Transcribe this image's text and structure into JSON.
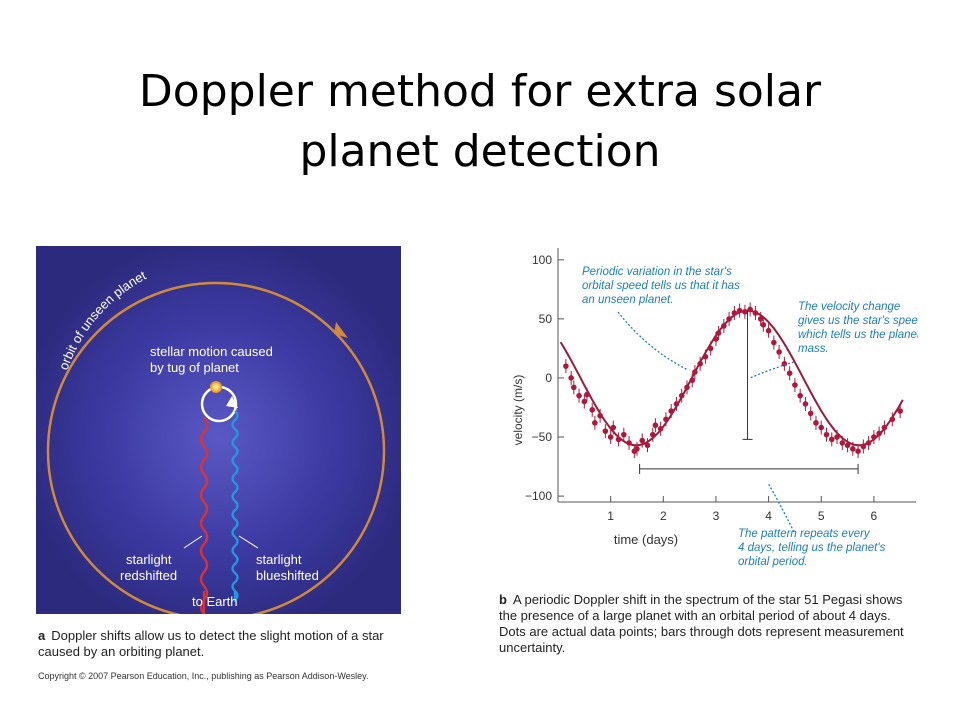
{
  "title_line1": "Doppler method for extra solar",
  "title_line2": "planet detection",
  "panel_a": {
    "orbit_label": "orbit of unseen planet",
    "motion_label_1": "stellar motion caused",
    "motion_label_2": "by tug of planet",
    "redshift_label_1": "starlight",
    "redshift_label_2": "redshifted",
    "blueshift_label_1": "starlight",
    "blueshift_label_2": "blueshifted",
    "earth_label": "to Earth",
    "caption_letter": "a",
    "caption_text": "Doppler shifts allow us to detect the slight motion of a star caused by an orbiting planet.",
    "colors": {
      "background": "#2c2a7c",
      "glow": "#5a58c4",
      "orbit": "#d18a3a",
      "red": "#e0312f",
      "blue": "#1f9be0"
    }
  },
  "panel_b": {
    "ylabel": "velocity (m/s)",
    "xlabel": "time (days)",
    "annotation_1": [
      "Periodic variation in the star's",
      "orbital speed tells us that it has",
      "an unseen planet."
    ],
    "annotation_2": [
      "The velocity change",
      "gives us the star's speed,",
      "which tells us the planet's",
      "mass."
    ],
    "annotation_3": [
      "The pattern repeats every",
      "4 days, telling us the planet's",
      "orbital period."
    ],
    "caption_letter": "b",
    "caption_text": "A periodic Doppler shift in the spectrum of the star 51 Pegasi shows the presence of a large planet with an orbital period of about 4 days. Dots are actual data points; bars through dots represent measurement uncertainty.",
    "colors": {
      "curve": "#9a1b3c",
      "points": "#b0173c",
      "annotation": "#1a7fb8"
    }
  },
  "chart_data": {
    "type": "scatter",
    "title": "",
    "xlabel": "time (days)",
    "ylabel": "velocity (m/s)",
    "xticks": [
      "1",
      "2",
      "3",
      "4",
      "5",
      "6"
    ],
    "yticks": [
      "100",
      "50",
      "0",
      "−50",
      "−100"
    ],
    "xlim": [
      0.0,
      6.8
    ],
    "ylim": [
      -105,
      110
    ],
    "model": {
      "amplitude": 57,
      "period_days": 4.23,
      "peak_day": 3.6
    },
    "points": [
      [
        0.15,
        10
      ],
      [
        0.25,
        0
      ],
      [
        0.3,
        -8
      ],
      [
        0.4,
        -15
      ],
      [
        0.5,
        -20
      ],
      [
        0.55,
        -14
      ],
      [
        0.65,
        -27
      ],
      [
        0.7,
        -38
      ],
      [
        0.8,
        -32
      ],
      [
        0.9,
        -45
      ],
      [
        1.0,
        -50
      ],
      [
        1.05,
        -42
      ],
      [
        1.15,
        -52
      ],
      [
        1.25,
        -48
      ],
      [
        1.35,
        -55
      ],
      [
        1.45,
        -62
      ],
      [
        1.5,
        -60
      ],
      [
        1.6,
        -53
      ],
      [
        1.7,
        -57
      ],
      [
        1.8,
        -48
      ],
      [
        1.85,
        -40
      ],
      [
        1.95,
        -43
      ],
      [
        2.05,
        -35
      ],
      [
        2.15,
        -28
      ],
      [
        2.25,
        -22
      ],
      [
        2.35,
        -15
      ],
      [
        2.45,
        -8
      ],
      [
        2.55,
        -2
      ],
      [
        2.6,
        5
      ],
      [
        2.7,
        12
      ],
      [
        2.8,
        18
      ],
      [
        2.9,
        25
      ],
      [
        3.0,
        33
      ],
      [
        3.05,
        38
      ],
      [
        3.15,
        44
      ],
      [
        3.25,
        50
      ],
      [
        3.35,
        55
      ],
      [
        3.45,
        57
      ],
      [
        3.55,
        56
      ],
      [
        3.65,
        58
      ],
      [
        3.75,
        55
      ],
      [
        3.85,
        50
      ],
      [
        3.9,
        45
      ],
      [
        4.0,
        40
      ],
      [
        4.1,
        30
      ],
      [
        4.2,
        22
      ],
      [
        4.3,
        12
      ],
      [
        4.4,
        4
      ],
      [
        4.5,
        -6
      ],
      [
        4.6,
        -15
      ],
      [
        4.7,
        -22
      ],
      [
        4.8,
        -30
      ],
      [
        4.9,
        -38
      ],
      [
        5.0,
        -42
      ],
      [
        5.1,
        -48
      ],
      [
        5.2,
        -52
      ],
      [
        5.3,
        -50
      ],
      [
        5.4,
        -55
      ],
      [
        5.5,
        -57
      ],
      [
        5.6,
        -60
      ],
      [
        5.7,
        -62
      ],
      [
        5.8,
        -58
      ],
      [
        5.9,
        -55
      ],
      [
        6.0,
        -50
      ],
      [
        6.1,
        -47
      ],
      [
        6.2,
        -42
      ],
      [
        6.35,
        -35
      ],
      [
        6.5,
        -28
      ]
    ],
    "velocity_bar": {
      "x": 3.6,
      "y_from": -52,
      "y_to": 57
    },
    "period_bar": {
      "x_from": 1.55,
      "x_to": 5.7,
      "y": -77
    },
    "grid": false
  },
  "copyright": "Copyright © 2007 Pearson Education, Inc., publishing as Pearson Addison-Wesley."
}
